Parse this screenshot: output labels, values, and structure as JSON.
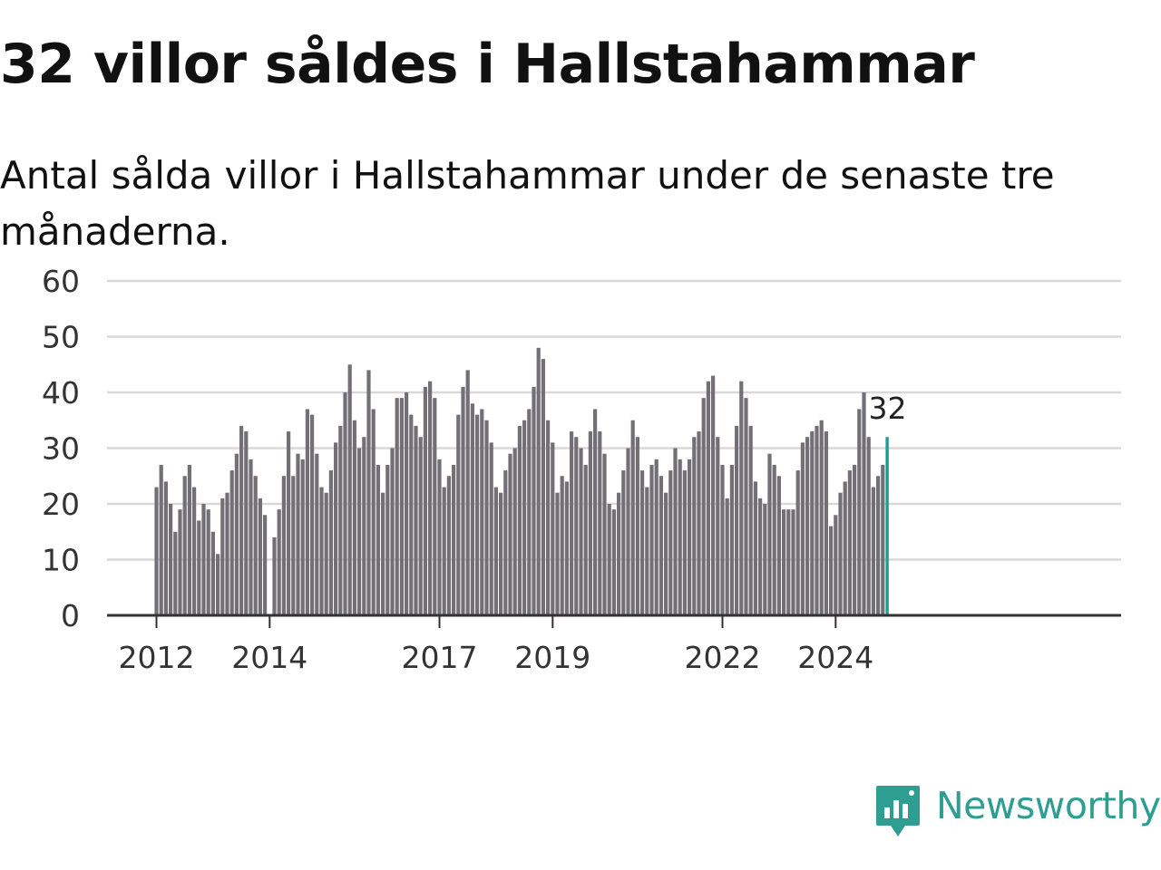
{
  "title": "32 villor såldes i Hallstahammar",
  "subtitle": "Antal sålda villor i Hallstahammar under de senaste tre månaderna.",
  "brand": {
    "name": "Newsworthy",
    "color": "#2e9e92",
    "icon": "newsworthy-logo-icon"
  },
  "colors": {
    "bar": "#727075",
    "highlight": "#1a9e92",
    "grid": "#d9d9d9",
    "axis": "#333333"
  },
  "chart_data": {
    "type": "bar",
    "ylim": [
      0,
      60
    ],
    "yticks": [
      0,
      10,
      20,
      30,
      40,
      50,
      60
    ],
    "grid": true,
    "x_tick_labels": [
      {
        "label": "2012",
        "index": 0
      },
      {
        "label": "2014",
        "index": 24
      },
      {
        "label": "2017",
        "index": 60
      },
      {
        "label": "2019",
        "index": 84
      },
      {
        "label": "2022",
        "index": 120
      },
      {
        "label": "2024",
        "index": 144
      }
    ],
    "highlight_label": "32",
    "series": [
      {
        "values": [
          23,
          27,
          24,
          20,
          15,
          19,
          25,
          27,
          23,
          17,
          20,
          19,
          15,
          11,
          21,
          22,
          26,
          29,
          34,
          33,
          28,
          25,
          21,
          18,
          null,
          14,
          19,
          25,
          33,
          25,
          29,
          28,
          37,
          36,
          29,
          23,
          22,
          26,
          31,
          34,
          40,
          45,
          35,
          30,
          32,
          44,
          37,
          27,
          22,
          27,
          30,
          39,
          39,
          40,
          36,
          34,
          32,
          41,
          42,
          39,
          28,
          23,
          25,
          27,
          36,
          41,
          44,
          38,
          36,
          37,
          35,
          31,
          23,
          22,
          26,
          29,
          30,
          34,
          35,
          37,
          41,
          48,
          46,
          35,
          31,
          22,
          25,
          24,
          33,
          32,
          30,
          27,
          33,
          37,
          33,
          29,
          20,
          19,
          22,
          26,
          30,
          35,
          32,
          26,
          23,
          27,
          28,
          25,
          22,
          26,
          30,
          28,
          26,
          28,
          32,
          33,
          39,
          42,
          43,
          32,
          27,
          21,
          27,
          34,
          42,
          39,
          34,
          24,
          21,
          20,
          29,
          27,
          25,
          19,
          19,
          19,
          26,
          31,
          32,
          33,
          34,
          35,
          33,
          16,
          18,
          22,
          24,
          26,
          27,
          37,
          40,
          32,
          23,
          25,
          27,
          32
        ]
      }
    ]
  }
}
